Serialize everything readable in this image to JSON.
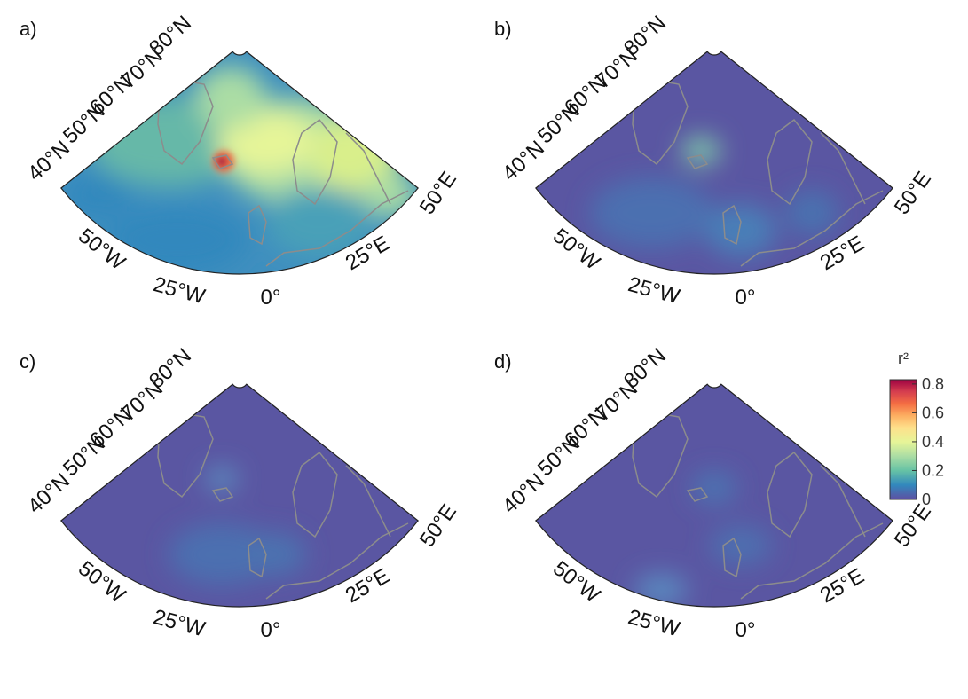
{
  "panels": [
    {
      "label": "a)"
    },
    {
      "label": "b)"
    },
    {
      "label": "c)"
    },
    {
      "label": "d)"
    }
  ],
  "latitude_labels": [
    "80°N",
    "70°N",
    "60°N",
    "50°N",
    "40°N"
  ],
  "longitude_labels": [
    "50°W",
    "25°W",
    "0°",
    "25°E",
    "50°E"
  ],
  "colorbar": {
    "label": "r²",
    "lim": [
      0,
      0.83
    ],
    "ticks": [
      0,
      0.2,
      0.4,
      0.6,
      0.8
    ]
  }
}
